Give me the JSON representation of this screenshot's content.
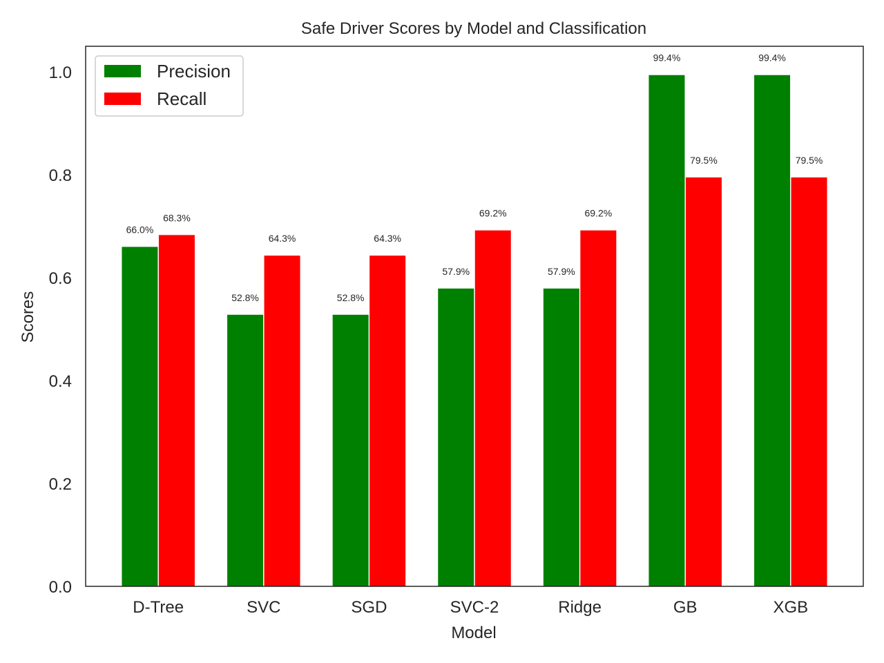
{
  "chart_data": {
    "type": "bar",
    "title": "Safe Driver Scores by Model and Classification",
    "xlabel": "Model",
    "ylabel": "Scores",
    "categories": [
      "D-Tree",
      "SVC",
      "SGD",
      "SVC-2",
      "Ridge",
      "GB",
      "XGB"
    ],
    "series": [
      {
        "name": "Precision",
        "color": "#008000",
        "values": [
          0.66,
          0.528,
          0.528,
          0.579,
          0.579,
          0.994,
          0.994
        ],
        "labels": [
          "66.0%",
          "52.8%",
          "52.8%",
          "57.9%",
          "57.9%",
          "99.4%",
          "99.4%"
        ]
      },
      {
        "name": "Recall",
        "color": "#ff0000",
        "values": [
          0.683,
          0.643,
          0.643,
          0.692,
          0.692,
          0.795,
          0.795
        ],
        "labels": [
          "68.3%",
          "64.3%",
          "64.3%",
          "69.2%",
          "69.2%",
          "79.5%",
          "79.5%"
        ]
      }
    ],
    "ylim": [
      0,
      1.05
    ],
    "yticks": [
      "0.0",
      "0.2",
      "0.4",
      "0.6",
      "0.8",
      "1.0"
    ],
    "grid": false,
    "legend_position": "top-left"
  }
}
